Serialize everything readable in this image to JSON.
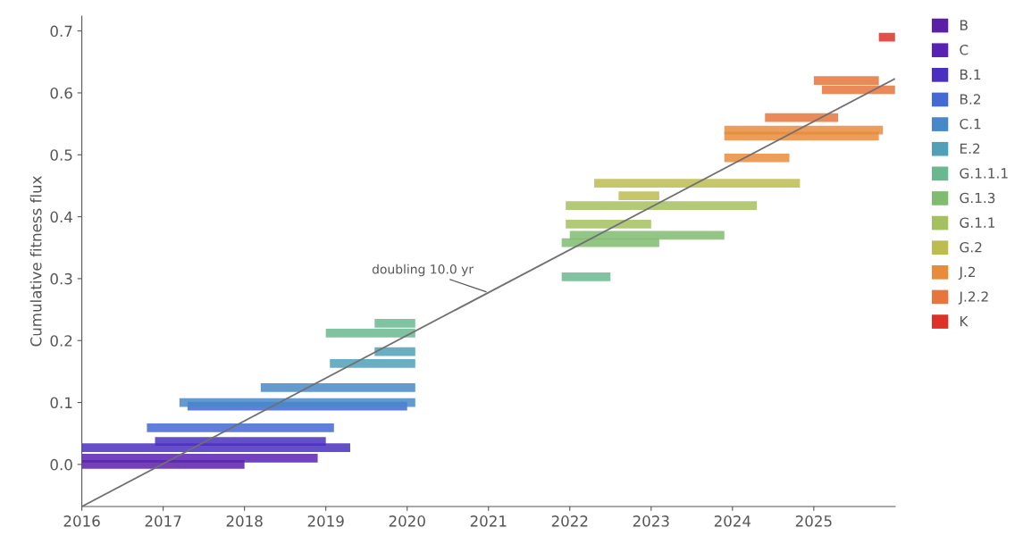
{
  "chart_data": {
    "type": "line",
    "ylabel": "Cumulative fitness flux",
    "xlim": [
      2016,
      2026
    ],
    "ylim": [
      -0.068,
      0.724
    ],
    "xticks": [
      2016,
      2017,
      2018,
      2019,
      2020,
      2021,
      2022,
      2023,
      2024,
      2025
    ],
    "yticks": [
      {
        "value": 0,
        "label": "0.0"
      },
      0.1,
      0.2,
      0.3,
      0.4,
      0.5,
      0.6,
      0.7
    ],
    "grid": false,
    "legend": "right",
    "marker": "none",
    "line_style": "solid",
    "series": [
      {
        "name": "B",
        "color": "#5a20a8",
        "x": [
          2016.0,
          2018.0
        ],
        "values": [
          0.0,
          0.0
        ]
      },
      {
        "name": "C",
        "color": "#5a22b4",
        "x": [
          2016.0,
          2018.9
        ],
        "values": [
          0.01,
          0.01
        ]
      },
      {
        "name": "B.1",
        "color": "#4a30c0",
        "x": [
          2016.0,
          2019.3
        ],
        "values": [
          0.027,
          0.027
        ]
      },
      {
        "color": "#4a30c0",
        "x": [
          2016.9,
          2019.0
        ],
        "values": [
          0.037,
          0.037
        ]
      },
      {
        "name": "B.2",
        "color": "#4468d4",
        "x": [
          2016.8,
          2019.1
        ],
        "values": [
          0.059,
          0.059
        ]
      },
      {
        "color": "#4468d4",
        "x": [
          2017.3,
          2020.0
        ],
        "values": [
          0.094,
          0.094
        ]
      },
      {
        "name": "C.1",
        "color": "#4888c8",
        "x": [
          2017.2,
          2020.1
        ],
        "values": [
          0.1,
          0.1
        ]
      },
      {
        "color": "#4888c8",
        "x": [
          2018.2,
          2020.1
        ],
        "values": [
          0.124,
          0.124
        ]
      },
      {
        "name": "E.2",
        "color": "#50a0b8",
        "x": [
          2019.05,
          2020.1
        ],
        "values": [
          0.163,
          0.163
        ]
      },
      {
        "color": "#50a0b8",
        "x": [
          2019.6,
          2020.1
        ],
        "values": [
          0.182,
          0.182
        ]
      },
      {
        "name": "G.1.1.1",
        "color": "#6ab890",
        "x": [
          2019.0,
          2020.1
        ],
        "values": [
          0.212,
          0.212
        ]
      },
      {
        "color": "#6ab890",
        "x": [
          2019.6,
          2020.1
        ],
        "values": [
          0.228,
          0.228
        ]
      },
      {
        "color": "#6ab890",
        "x": [
          2021.9,
          2022.5
        ],
        "values": [
          0.303,
          0.303
        ]
      },
      {
        "name": "G.1.3",
        "color": "#80bc70",
        "x": [
          2021.9,
          2023.1
        ],
        "values": [
          0.358,
          0.358
        ]
      },
      {
        "color": "#80bc70",
        "x": [
          2022.0,
          2023.9
        ],
        "values": [
          0.37,
          0.37
        ]
      },
      {
        "name": "G.1.1",
        "color": "#a4c060",
        "x": [
          2021.95,
          2023.0
        ],
        "values": [
          0.388,
          0.388
        ]
      },
      {
        "color": "#a4c060",
        "x": [
          2021.95,
          2024.3
        ],
        "values": [
          0.418,
          0.418
        ]
      },
      {
        "name": "G.2",
        "color": "#bcbc50",
        "x": [
          2022.6,
          2023.1
        ],
        "values": [
          0.434,
          0.434
        ]
      },
      {
        "color": "#bcbc50",
        "x": [
          2022.3,
          2024.83
        ],
        "values": [
          0.454,
          0.454
        ]
      },
      {
        "name": "J.2",
        "color": "#e88c3c",
        "x": [
          2023.9,
          2024.7
        ],
        "values": [
          0.495,
          0.495
        ]
      },
      {
        "color": "#e88c3c",
        "x": [
          2023.9,
          2025.8
        ],
        "values": [
          0.53,
          0.53
        ]
      },
      {
        "color": "#e88c3c",
        "x": [
          2023.9,
          2025.85
        ],
        "values": [
          0.54,
          0.54
        ]
      },
      {
        "name": "J.2.2",
        "color": "#e8763c",
        "x": [
          2024.4,
          2025.3
        ],
        "values": [
          0.56,
          0.56
        ]
      },
      {
        "color": "#e8763c",
        "x": [
          2025.1,
          2026.0
        ],
        "values": [
          0.605,
          0.605
        ]
      },
      {
        "color": "#e8763c",
        "x": [
          2025.0,
          2025.8
        ],
        "values": [
          0.62,
          0.62
        ]
      },
      {
        "name": "K",
        "color": "#dc3228",
        "x": [
          2025.8,
          2026.0
        ],
        "values": [
          0.69,
          0.69
        ]
      },
      {
        "color": "#707070",
        "x": [
          2016,
          2026
        ],
        "values": [
          -0.068,
          0.623
        ]
      }
    ],
    "annotations": [
      {
        "text": "doubling 10.0 yr",
        "x": 2021.0,
        "y": 0.2775
      }
    ]
  }
}
